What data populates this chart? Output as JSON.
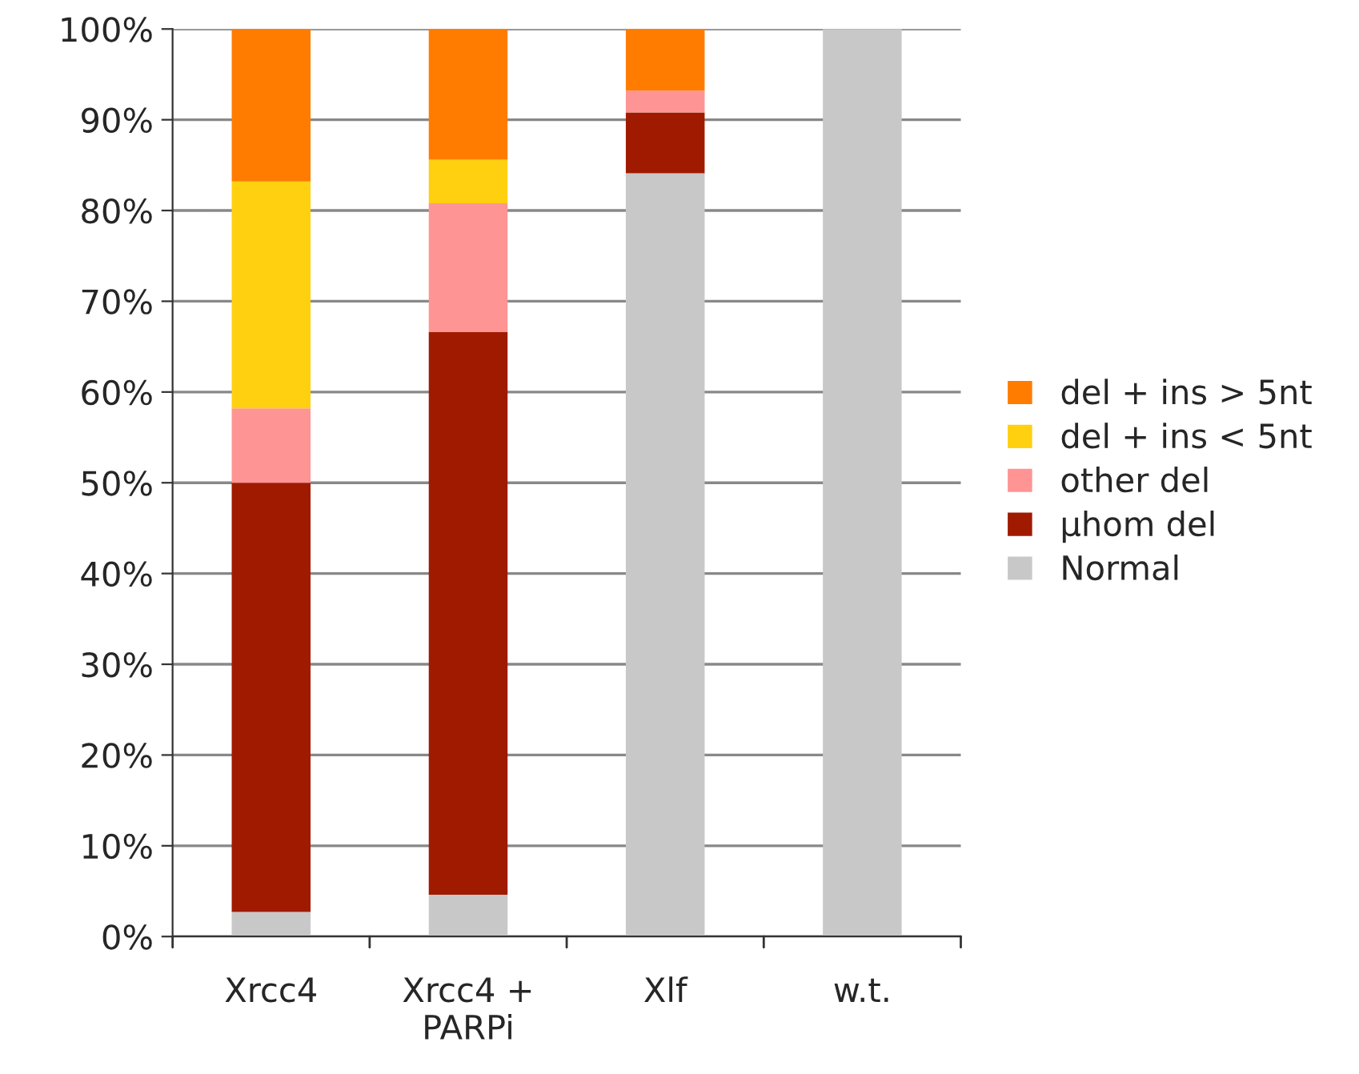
{
  "chart_data": {
    "type": "bar",
    "stacked": true,
    "categories": [
      "Xrcc4",
      "Xrcc4 +\nPARPi",
      "Xlf",
      "w.t."
    ],
    "series": [
      {
        "name": "Normal",
        "color": "#c8c8c8",
        "values": [
          2.7,
          4.6,
          84.1,
          100
        ]
      },
      {
        "name": "µhom del",
        "color": "#a01a00",
        "values": [
          47.3,
          62.0,
          6.7,
          0
        ]
      },
      {
        "name": "other del",
        "color": "#ff9494",
        "values": [
          8.2,
          14.2,
          2.4,
          0
        ]
      },
      {
        "name": "del + ins < 5nt",
        "color": "#ffd010",
        "values": [
          25.0,
          4.8,
          0,
          0
        ]
      },
      {
        "name": "del + ins > 5nt",
        "color": "#ff7c00",
        "values": [
          16.8,
          14.4,
          6.8,
          0
        ]
      }
    ],
    "ylim": [
      0,
      100
    ],
    "yticks": [
      {
        "value": 0,
        "label": "0%"
      },
      {
        "value": 10,
        "label": "10%"
      },
      {
        "value": 20,
        "label": "20%"
      },
      {
        "value": 30,
        "label": "30%"
      },
      {
        "value": 40,
        "label": "40%"
      },
      {
        "value": 50,
        "label": "50%"
      },
      {
        "value": 60,
        "label": "60%"
      },
      {
        "value": 70,
        "label": "70%"
      },
      {
        "value": 80,
        "label": "80%"
      },
      {
        "value": 90,
        "label": "90%"
      },
      {
        "value": 100,
        "label": "100%"
      }
    ],
    "grid": "y",
    "legend": "right"
  }
}
